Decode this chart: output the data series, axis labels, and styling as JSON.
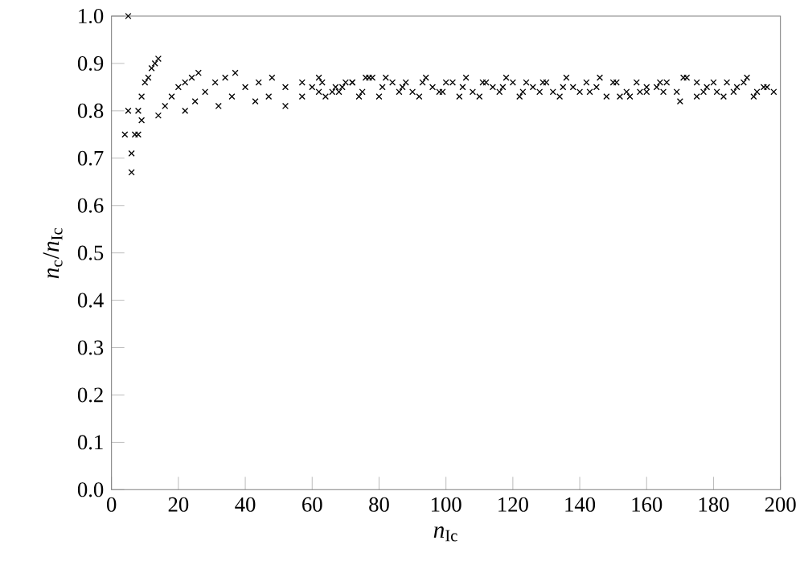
{
  "chart_data": {
    "type": "scatter",
    "xlabel": "*n*$_{Ic}$",
    "ylabel": "*n*$_{c}$/*n*$_{Ic}$",
    "marker": "cross",
    "grid": false,
    "xlim": [
      0,
      200
    ],
    "ylim": [
      0,
      1
    ],
    "xticks": [
      0,
      20,
      40,
      60,
      80,
      100,
      120,
      140,
      160,
      180,
      200
    ],
    "yticks": [
      {
        "value": 0,
        "label": "0.0"
      },
      {
        "value": 0.1,
        "label": "0.1"
      },
      {
        "value": 0.2,
        "label": "0.2"
      },
      {
        "value": 0.3,
        "label": "0.3"
      },
      {
        "value": 0.4,
        "label": "0.4"
      },
      {
        "value": 0.5,
        "label": "0.5"
      },
      {
        "value": 0.6,
        "label": "0.6"
      },
      {
        "value": 0.7,
        "label": "0.7"
      },
      {
        "value": 0.8,
        "label": "0.8"
      },
      {
        "value": 0.9,
        "label": "0.9"
      },
      {
        "value": 1,
        "label": "1.0"
      }
    ],
    "series": [
      {
        "color": "#000000",
        "x": [
          4,
          5,
          5,
          6,
          6,
          7,
          8,
          8,
          9,
          9,
          10,
          11,
          12,
          13,
          14,
          14,
          16,
          18,
          20,
          22,
          24,
          26,
          22,
          25,
          28,
          31,
          34,
          37,
          32,
          36,
          40,
          44,
          48,
          43,
          47,
          52,
          57,
          62,
          52,
          57,
          62,
          67,
          72,
          77,
          60,
          63,
          66,
          69,
          72,
          75,
          78,
          81,
          84,
          87,
          90,
          93,
          96,
          99,
          102,
          105,
          108,
          111,
          114,
          117,
          120,
          123,
          126,
          129,
          132,
          135,
          138,
          64,
          68,
          74,
          80,
          86,
          92,
          98,
          104,
          110,
          116,
          122,
          128,
          134,
          140,
          70,
          76,
          82,
          88,
          94,
          100,
          106,
          112,
          118,
          124,
          130,
          136,
          142,
          145,
          148,
          151,
          154,
          157,
          160,
          163,
          166,
          169,
          172,
          175,
          178,
          181,
          184,
          187,
          190,
          193,
          196,
          198,
          146,
          150,
          155,
          160,
          165,
          170,
          175,
          180,
          186,
          192,
          143,
          152,
          158,
          164,
          171,
          177,
          183,
          189,
          195
        ],
        "values": [
          0.75,
          1.0,
          0.8,
          0.67,
          0.71,
          0.75,
          0.75,
          0.8,
          0.78,
          0.83,
          0.86,
          0.87,
          0.89,
          0.9,
          0.91,
          0.79,
          0.81,
          0.83,
          0.85,
          0.86,
          0.87,
          0.88,
          0.8,
          0.82,
          0.84,
          0.86,
          0.87,
          0.88,
          0.81,
          0.83,
          0.85,
          0.86,
          0.87,
          0.82,
          0.83,
          0.85,
          0.86,
          0.87,
          0.81,
          0.83,
          0.84,
          0.85,
          0.86,
          0.87,
          0.85,
          0.86,
          0.84,
          0.85,
          0.86,
          0.84,
          0.87,
          0.85,
          0.86,
          0.85,
          0.84,
          0.86,
          0.85,
          0.84,
          0.86,
          0.85,
          0.84,
          0.86,
          0.85,
          0.85,
          0.86,
          0.84,
          0.85,
          0.86,
          0.84,
          0.85,
          0.85,
          0.83,
          0.84,
          0.83,
          0.83,
          0.84,
          0.83,
          0.84,
          0.83,
          0.83,
          0.84,
          0.83,
          0.84,
          0.83,
          0.84,
          0.86,
          0.87,
          0.87,
          0.86,
          0.87,
          0.86,
          0.87,
          0.86,
          0.87,
          0.86,
          0.86,
          0.87,
          0.86,
          0.85,
          0.83,
          0.86,
          0.84,
          0.86,
          0.84,
          0.85,
          0.86,
          0.84,
          0.87,
          0.86,
          0.85,
          0.84,
          0.86,
          0.85,
          0.87,
          0.84,
          0.85,
          0.84,
          0.87,
          0.86,
          0.83,
          0.85,
          0.84,
          0.82,
          0.83,
          0.86,
          0.84,
          0.83,
          0.84,
          0.83,
          0.84,
          0.86,
          0.87,
          0.84,
          0.83,
          0.86,
          0.85
        ]
      }
    ]
  }
}
